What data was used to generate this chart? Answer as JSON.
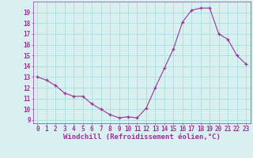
{
  "x_values": [
    0,
    1,
    2,
    3,
    4,
    5,
    6,
    7,
    8,
    9,
    10,
    11,
    12,
    13,
    14,
    15,
    16,
    17,
    18,
    19,
    20,
    21,
    22,
    23
  ],
  "y_values": [
    13.0,
    12.7,
    12.2,
    11.5,
    11.2,
    11.2,
    10.5,
    10.0,
    9.5,
    9.2,
    9.3,
    9.2,
    10.1,
    12.0,
    13.8,
    15.6,
    18.1,
    19.2,
    19.4,
    19.4,
    17.0,
    16.5,
    15.0,
    14.2
  ],
  "line_color": "#993399",
  "marker_color": "#993399",
  "bg_color": "#d8f0f0",
  "grid_color": "#aadddd",
  "xlabel": "Windchill (Refroidissement éolien,°C)",
  "ylim_min": 8.7,
  "ylim_max": 20.0,
  "xlim_min": -0.5,
  "xlim_max": 23.5,
  "yticks": [
    9,
    10,
    11,
    12,
    13,
    14,
    15,
    16,
    17,
    18,
    19
  ],
  "xticks": [
    0,
    1,
    2,
    3,
    4,
    5,
    6,
    7,
    8,
    9,
    10,
    11,
    12,
    13,
    14,
    15,
    16,
    17,
    18,
    19,
    20,
    21,
    22,
    23
  ],
  "tick_label_color": "#993399",
  "tick_fontsize": 5.5,
  "xlabel_fontsize": 6.5,
  "linewidth": 0.8,
  "markersize": 3.5
}
